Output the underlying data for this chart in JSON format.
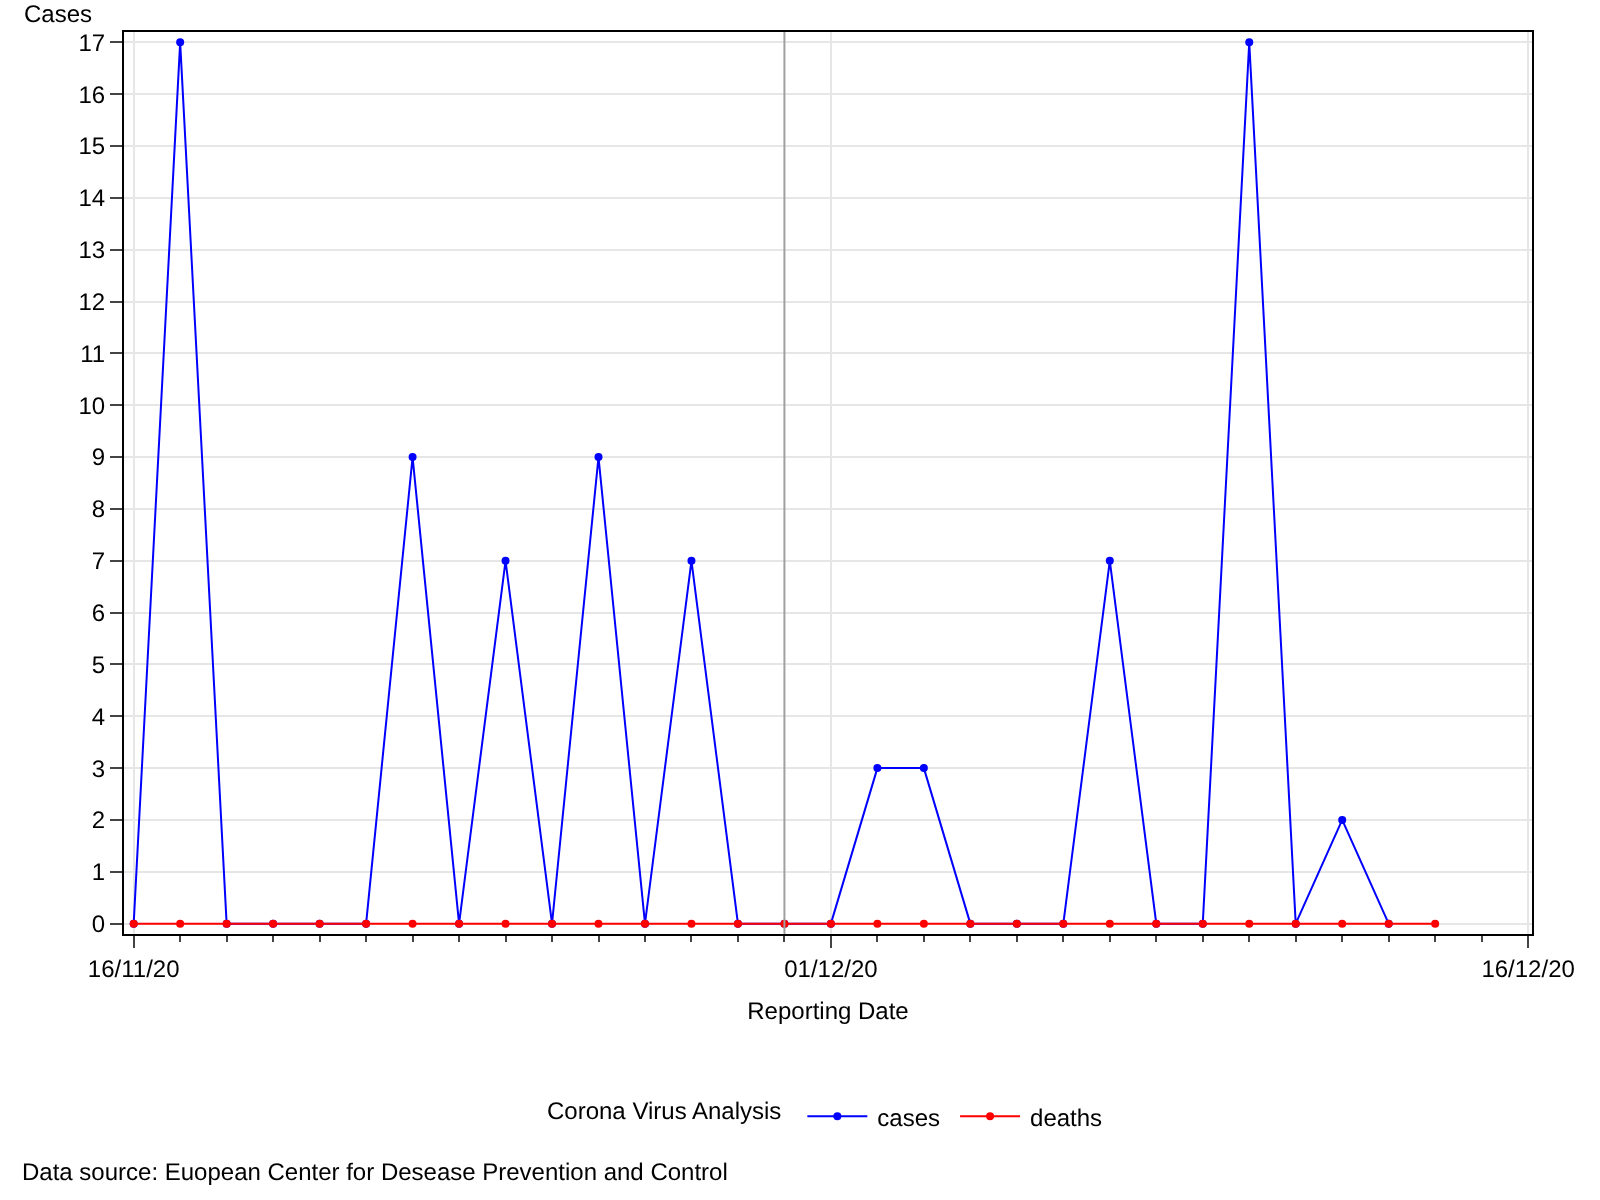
{
  "chart_data": {
    "type": "line",
    "ylabel": "Cases",
    "xlabel": "Reporting Date",
    "legend_title": "Corona Virus Analysis",
    "annotations": [
      "Data source: Euopean Center for Desease Prevention and Control"
    ],
    "series": [
      {
        "name": "cases",
        "color": "#0000ff",
        "x": [
          "2020-11-16",
          "2020-11-17",
          "2020-11-18",
          "2020-11-19",
          "2020-11-20",
          "2020-11-21",
          "2020-11-22",
          "2020-11-23",
          "2020-11-24",
          "2020-11-25",
          "2020-11-26",
          "2020-11-27",
          "2020-11-28",
          "2020-11-29",
          "2020-11-30",
          "2020-12-01",
          "2020-12-02",
          "2020-12-03",
          "2020-12-04",
          "2020-12-05",
          "2020-12-06",
          "2020-12-07",
          "2020-12-08",
          "2020-12-09",
          "2020-12-10",
          "2020-12-11",
          "2020-12-12",
          "2020-12-13"
        ],
        "values": [
          0,
          17,
          0,
          0,
          0,
          0,
          9,
          0,
          7,
          0,
          9,
          0,
          7,
          0,
          0,
          0,
          3,
          3,
          0,
          0,
          0,
          7,
          0,
          0,
          17,
          0,
          2,
          0
        ]
      },
      {
        "name": "deaths",
        "color": "#ff0000",
        "x": [
          "2020-11-16",
          "2020-11-17",
          "2020-11-18",
          "2020-11-19",
          "2020-11-20",
          "2020-11-21",
          "2020-11-22",
          "2020-11-23",
          "2020-11-24",
          "2020-11-25",
          "2020-11-26",
          "2020-11-27",
          "2020-11-28",
          "2020-11-29",
          "2020-11-30",
          "2020-12-01",
          "2020-12-02",
          "2020-12-03",
          "2020-12-04",
          "2020-12-05",
          "2020-12-06",
          "2020-12-07",
          "2020-12-08",
          "2020-12-09",
          "2020-12-10",
          "2020-12-11",
          "2020-12-12",
          "2020-12-13",
          "2020-12-14"
        ],
        "values": [
          0,
          0,
          0,
          0,
          0,
          0,
          0,
          0,
          0,
          0,
          0,
          0,
          0,
          0,
          0,
          0,
          0,
          0,
          0,
          0,
          0,
          0,
          0,
          0,
          0,
          0,
          0,
          0,
          0
        ]
      }
    ],
    "xlim": [
      "2020-11-15T19:00",
      "2020-12-16T02:00"
    ],
    "xticks": [
      {
        "value": "2020-11-16",
        "label": "16/11/20"
      },
      {
        "value": "2020-12-01",
        "label": "01/12/20"
      },
      {
        "value": "2020-12-16",
        "label": "16/12/20"
      }
    ],
    "ylim": [
      -0.2,
      17.2
    ],
    "yticks": [
      0,
      1,
      2,
      3,
      4,
      5,
      6,
      7,
      8,
      9,
      10,
      11,
      12,
      13,
      14,
      15,
      16,
      17
    ],
    "ref_lines": [
      {
        "axis": "x",
        "value": "2020-11-30",
        "color": "#a0a0a0"
      }
    ],
    "grid": true,
    "legend": "bottom",
    "marker": "circle",
    "line_style": "solid"
  }
}
